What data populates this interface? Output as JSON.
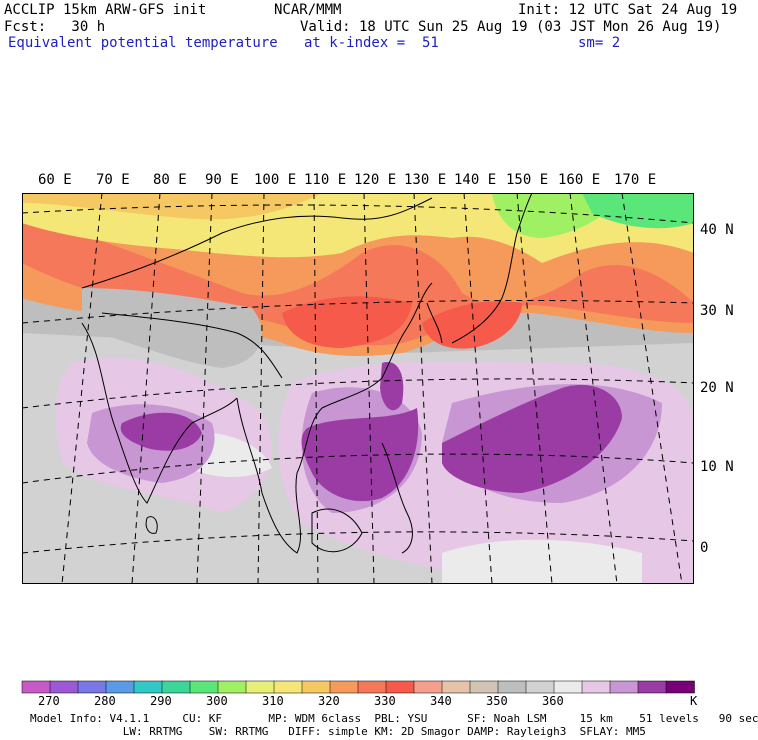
{
  "header": {
    "model": "ACCLIP 15km ARW-GFS init",
    "center": "NCAR/MMM",
    "init": "Init: 12 UTC Sat 24 Aug 19",
    "fcst": "Fcst:   30 h",
    "valid": "Valid: 18 UTC Sun 25 Aug 19 (03 JST Mon 26 Aug 19)",
    "field": "Equivalent potential temperature",
    "level": "at k-index =  51",
    "smooth": "sm= 2"
  },
  "map": {
    "lon_labels": [
      "60 E",
      "70 E",
      "80 E",
      "90 E",
      "100 E",
      "110 E",
      "120 E",
      "130 E",
      "140 E",
      "150 E",
      "160 E",
      "170 E"
    ],
    "lat_labels": [
      "40 N",
      "30 N",
      "20 N",
      "10 N",
      "0"
    ]
  },
  "colorbar": {
    "labels": [
      "270",
      "280",
      "290",
      "300",
      "310",
      "320",
      "330",
      "340",
      "350",
      "360"
    ],
    "unit": "K",
    "colors": [
      "#c85ac8",
      "#9b59d6",
      "#7878e6",
      "#5a9ae6",
      "#32c8c8",
      "#3cd69a",
      "#5ae678",
      "#a0f064",
      "#e6f078",
      "#f5e678",
      "#f5c864",
      "#f59a5a",
      "#f5785a",
      "#f55a4a",
      "#f5a08c",
      "#e6c3a8",
      "#d2c3b4",
      "#bebebe",
      "#d2d2d2",
      "#ebebeb",
      "#e6c8e6",
      "#c896d2",
      "#9b3ca5",
      "#780078"
    ]
  },
  "footer": {
    "line1": "Model Info: V4.1.1     CU: KF       MP: WDM 6class  PBL: YSU      SF: Noah LSM     15 km    51 levels   90 sec",
    "line2": "              LW: RRTMG    SW: RRTMG   DIFF: simple KM: 2D Smagor DAMP: Rayleigh3  SFLAY: MM5"
  }
}
